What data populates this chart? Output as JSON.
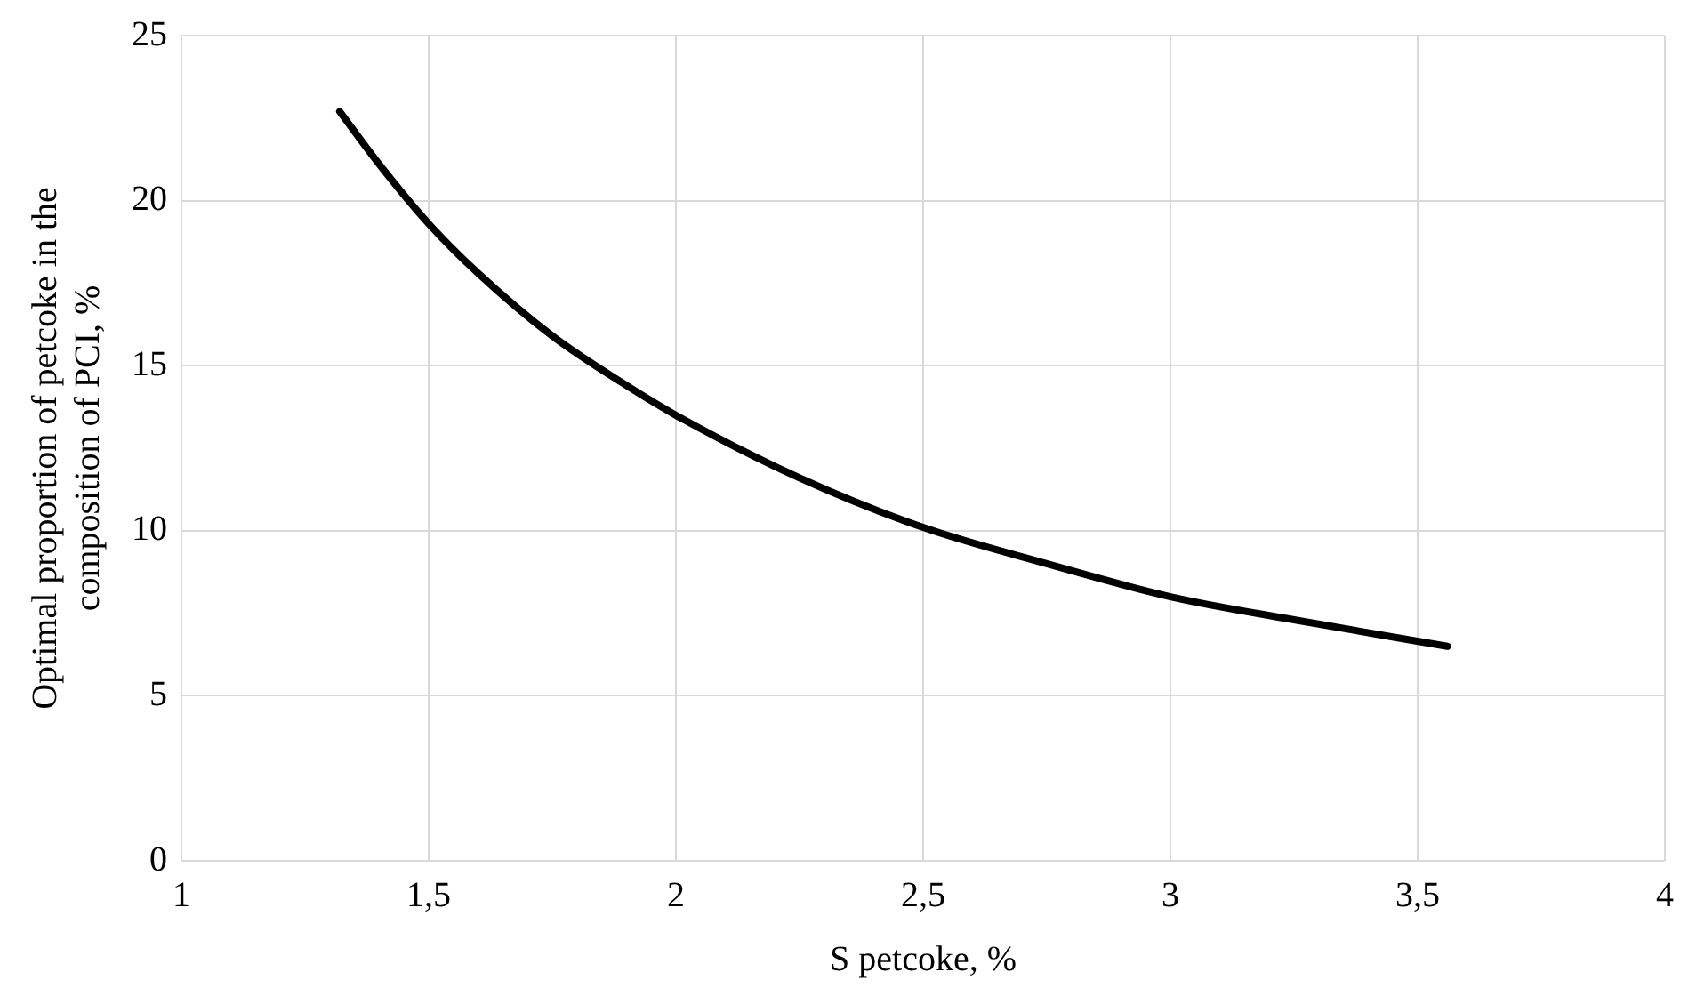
{
  "chart_data": {
    "type": "line",
    "xlabel": "S petcoke, %",
    "ylabel": "Optimal proportion of petcoke in the composition of PCI, %",
    "x": [
      1.32,
      1.4,
      1.5,
      1.6,
      1.75,
      1.9,
      2,
      2.25,
      2.5,
      2.75,
      3,
      3.25,
      3.56
    ],
    "series": [
      {
        "color": "#000000",
        "values": [
          22.7,
          21.1,
          19.3,
          17.8,
          15.9,
          14.4,
          13.5,
          11.6,
          10.1,
          9.0,
          8.0,
          7.3,
          6.5
        ]
      }
    ],
    "xlim": [
      1,
      4
    ],
    "xticks": [
      1,
      {
        "value": 1.5,
        "label": "1,5"
      },
      2,
      {
        "value": 2.5,
        "label": "2,5"
      },
      3,
      {
        "value": 3.5,
        "label": "3,5"
      },
      4
    ],
    "ylim": [
      0,
      25
    ],
    "yticks": [
      0,
      5,
      10,
      15,
      20,
      25
    ],
    "grid": true,
    "legend": false,
    "marker": "none",
    "line_style": "solid"
  }
}
